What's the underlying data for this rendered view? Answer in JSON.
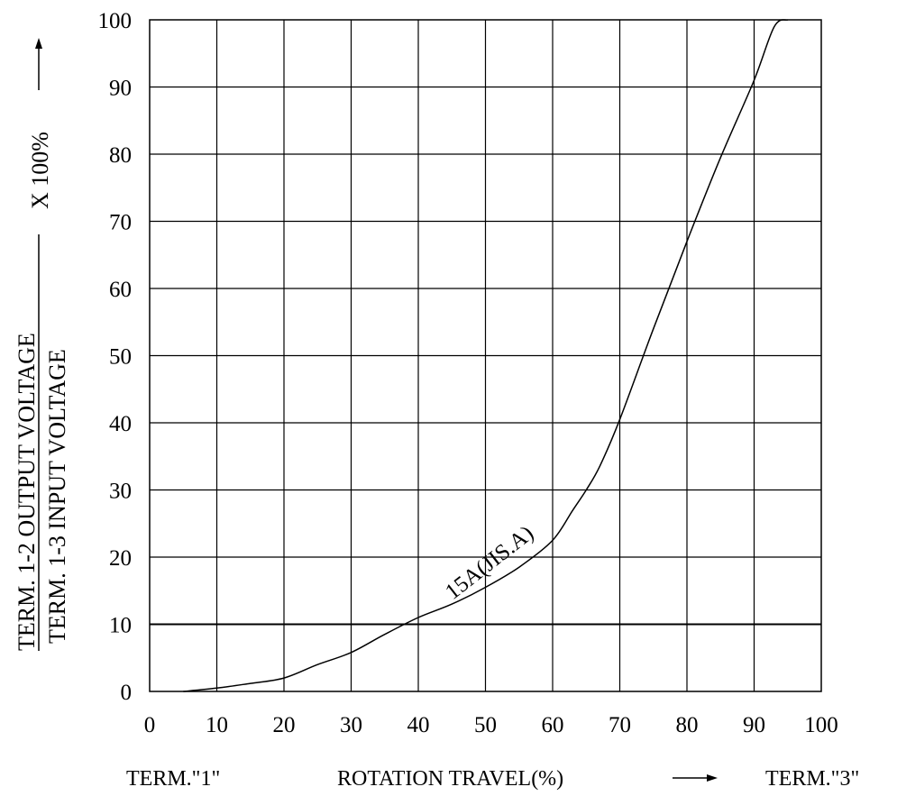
{
  "chart_data": {
    "type": "line",
    "x": [
      5,
      10,
      15,
      20,
      25,
      30,
      35,
      40,
      45,
      50,
      55,
      60,
      63,
      65,
      67,
      70,
      75,
      80,
      85,
      90,
      93,
      95
    ],
    "series": [
      {
        "name": "15A(JIS.A)",
        "values": [
          0,
          0.5,
          1.2,
          2,
          4,
          5.8,
          8.5,
          11,
          13,
          15.5,
          18.5,
          22.5,
          27,
          30,
          33.5,
          40.5,
          54,
          67,
          79.5,
          91,
          99,
          100
        ]
      }
    ],
    "xlim": [
      0,
      100
    ],
    "ylim": [
      0,
      100
    ],
    "x_ticks": [
      "0",
      "10",
      "20",
      "30",
      "40",
      "50",
      "60",
      "70",
      "80",
      "90",
      "100"
    ],
    "y_ticks": [
      "0",
      "10",
      "20",
      "30",
      "40",
      "50",
      "60",
      "70",
      "80",
      "90",
      "100"
    ],
    "xlabel": "ROTATION TRAVEL(%)",
    "x_left_label": "TERM.\"1\"",
    "x_right_label": "TERM.\"3\"",
    "ylabel_numerator": "TERM. 1-2 OUTPUT VOLTAGE",
    "ylabel_denominator": "TERM. 1-3 INPUT VOLTAGE",
    "ylabel_multiplier": "X 100%",
    "annotation": "15A(JIS.A)",
    "grid": true
  }
}
